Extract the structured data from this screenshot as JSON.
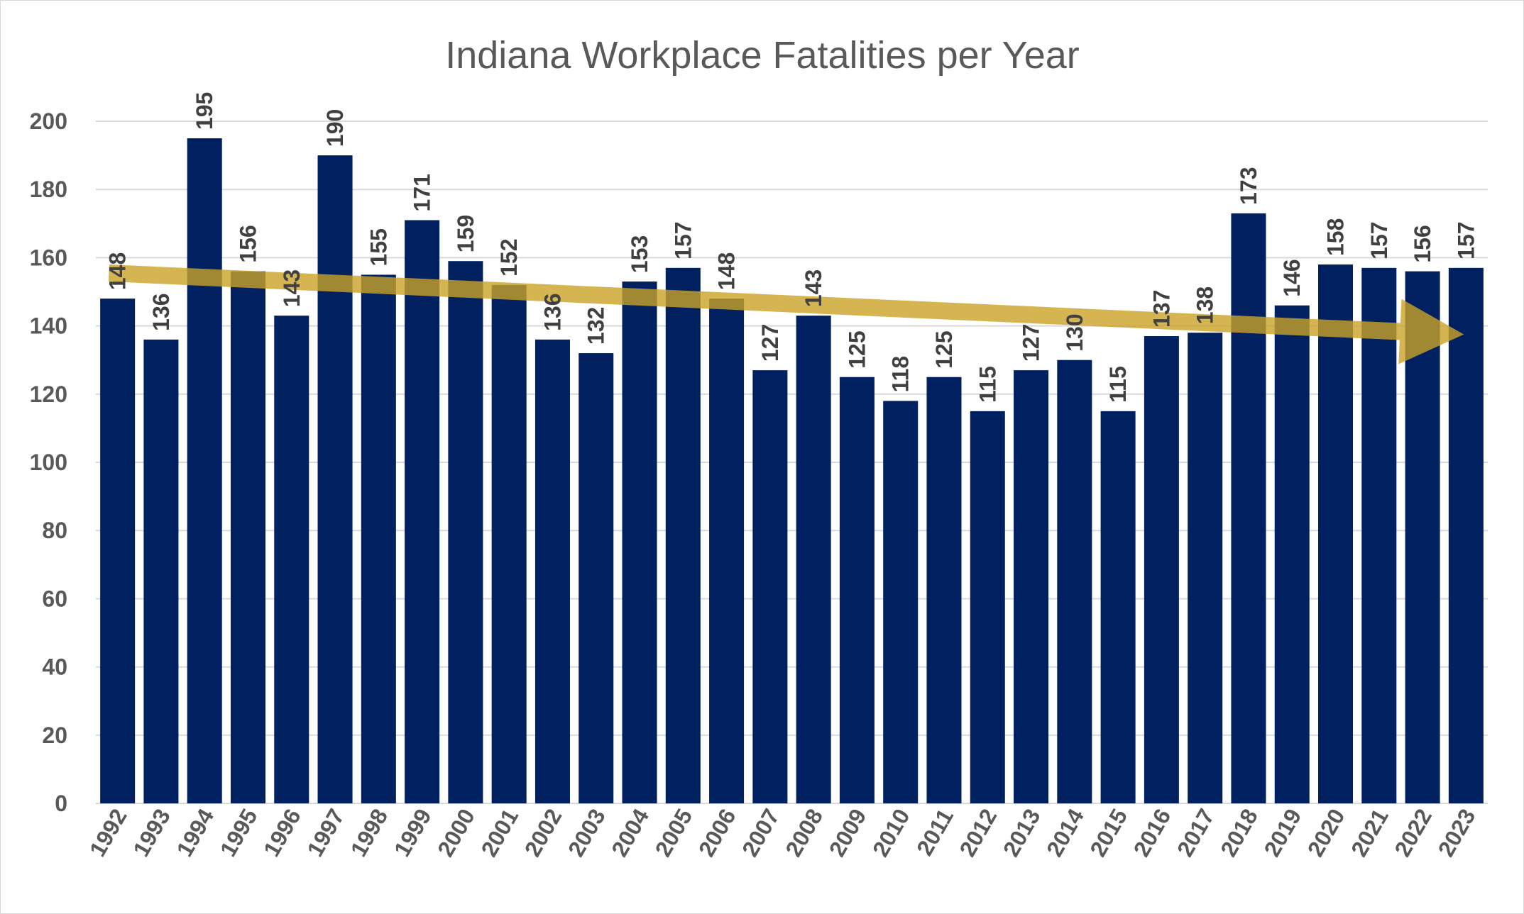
{
  "chart_data": {
    "type": "bar",
    "title": "Indiana Workplace Fatalities per Year",
    "xlabel": "",
    "ylabel": "",
    "categories": [
      "1992",
      "1993",
      "1994",
      "1995",
      "1996",
      "1997",
      "1998",
      "1999",
      "2000",
      "2001",
      "2002",
      "2003",
      "2004",
      "2005",
      "2006",
      "2007",
      "2008",
      "2009",
      "2010",
      "2011",
      "2012",
      "2013",
      "2014",
      "2015",
      "2016",
      "2017",
      "2018",
      "2019",
      "2020",
      "2021",
      "2022",
      "2023"
    ],
    "values": [
      148,
      136,
      195,
      156,
      143,
      190,
      155,
      171,
      159,
      152,
      136,
      132,
      153,
      157,
      148,
      127,
      143,
      125,
      118,
      125,
      115,
      127,
      130,
      115,
      137,
      138,
      173,
      146,
      158,
      157,
      156,
      157
    ],
    "ylim": [
      0,
      200
    ],
    "yticks": [
      0,
      20,
      40,
      60,
      80,
      100,
      120,
      140,
      160,
      180,
      200
    ],
    "grid": true,
    "legend": "none",
    "data_labels": true,
    "bar_color": "#002060",
    "trend_arrow": {
      "start_value": 155.5,
      "end_value": 137.5,
      "color": "#C9A227"
    }
  }
}
